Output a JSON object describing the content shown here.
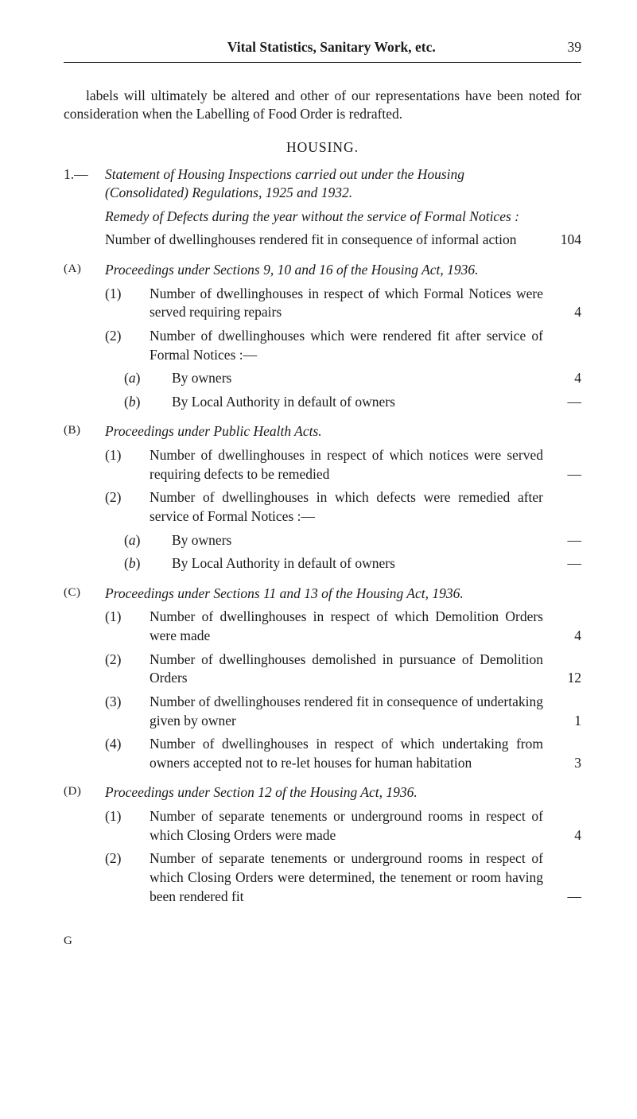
{
  "page": {
    "running_title": "Vital Statistics, Sanitary Work, etc.",
    "number": "39"
  },
  "intro": {
    "para": "labels will ultimately be altered and other of our representa­tions have been noted for consideration when the Labelling of Food Order is redrafted."
  },
  "housing": {
    "heading": "HOUSING.",
    "section1": {
      "marker": "1.—",
      "title_l1": "Statement of Housing Inspections carried out under the Housing",
      "title_l2_italic": "(Consolidated) Regulations,",
      "title_l2_rest": " 1925 and 1932.",
      "remedy": "Remedy of Defects during the year without the service of Formal Notices :",
      "num_line": "Number of dwellinghouses rendered fit in consequence of informal action",
      "num_val": "104"
    },
    "A": {
      "marker": "(A)",
      "title": "Proceedings under Sections 9, 10 and 16 of the Housing Act, 1936.",
      "items": [
        {
          "num": "(1)",
          "text": "Number of dwellinghouses in respect of which Formal Notices were served requiring repairs",
          "val": "4"
        },
        {
          "num": "(2)",
          "text": "Number of dwellinghouses which were rendered fit after service of Formal Notices :—",
          "val": "",
          "subs": [
            {
              "m": "(a)",
              "t": "By owners",
              "v": "4"
            },
            {
              "m": "(b)",
              "t": "By Local Authority in default of owners",
              "v": "—"
            }
          ]
        }
      ]
    },
    "B": {
      "marker": "(B)",
      "title": "Proceedings under Public Health Acts.",
      "items": [
        {
          "num": "(1)",
          "text": "Number of dwellinghouses in respect of which notices were served requiring defects to be remedied",
          "val": "—"
        },
        {
          "num": "(2)",
          "text": "Number of dwellinghouses in which defects were remedied after service of Formal Notices :—",
          "val": "",
          "subs": [
            {
              "m": "(a)",
              "t": "By owners",
              "v": "—"
            },
            {
              "m": "(b)",
              "t": "By Local Authority in default of owners",
              "v": "—"
            }
          ]
        }
      ]
    },
    "C": {
      "marker": "(C)",
      "title": "Proceedings under Sections 11 and 13 of the Housing Act, 1936.",
      "items": [
        {
          "num": "(1)",
          "text": "Number of dwellinghouses in respect of which Demolition Orders were made",
          "val": "4"
        },
        {
          "num": "(2)",
          "text": "Number of dwellinghouses demolished in pur­suance of Demolition Orders",
          "val": "12"
        },
        {
          "num": "(3)",
          "text": "Number of dwellinghouses rendered fit in con­sequence of undertaking given by owner",
          "val": "1"
        },
        {
          "num": "(4)",
          "text": "Number of dwellinghouses in respect of which undertaking from owners accepted not to re-let houses for human habitation",
          "val": "3"
        }
      ]
    },
    "D": {
      "marker": "(D)",
      "title": "Proceedings under Section 12 of the Housing Act, 1936.",
      "items": [
        {
          "num": "(1)",
          "text": "Number of separate tenements or underground rooms in respect of which Closing Orders were made",
          "val": "4"
        },
        {
          "num": "(2)",
          "text": "Number of separate tenements or underground rooms in respect of which Closing Orders were determined, the tenement or room having been rendered fit",
          "val": "—"
        }
      ]
    }
  },
  "footer": {
    "sig": "G"
  }
}
